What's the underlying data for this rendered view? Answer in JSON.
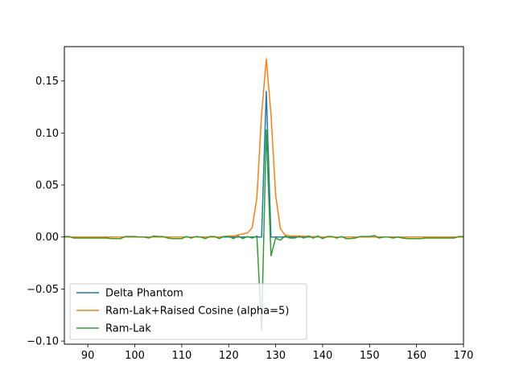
{
  "chart_data": {
    "type": "line",
    "title": "",
    "xlabel": "",
    "ylabel": "",
    "xlim": [
      85,
      170
    ],
    "ylim": [
      -0.103,
      0.183
    ],
    "xticks": [
      90,
      100,
      110,
      120,
      130,
      140,
      150,
      160,
      170
    ],
    "yticks": [
      -0.1,
      -0.05,
      0.0,
      0.05,
      0.1,
      0.15
    ],
    "ytick_labels": [
      "−0.10",
      "−0.05",
      "0.00",
      "0.05",
      "0.10",
      "0.15"
    ],
    "grid": false,
    "legend_position": "lower-left",
    "series": [
      {
        "name": "Delta Phantom",
        "color": "#1f77b4",
        "x": [
          85,
          126,
          127,
          128,
          129,
          130,
          170
        ],
        "y": [
          0,
          0,
          0,
          0.14,
          0,
          0,
          0
        ]
      },
      {
        "name": "Ram-Lak+Raised Cosine (alpha=5)",
        "color": "#ff7f0e",
        "x": [
          85,
          90,
          100,
          110,
          115,
          118,
          120,
          121,
          122,
          123,
          124,
          125,
          126,
          127,
          128,
          129,
          130,
          131,
          132,
          133,
          135,
          140,
          150,
          160,
          170
        ],
        "y": [
          0,
          0,
          0,
          0,
          0,
          0,
          0.001,
          0.001,
          0.002,
          0.003,
          0.004,
          0.009,
          0.038,
          0.118,
          0.171,
          0.118,
          0.04,
          0.008,
          0.002,
          0.001,
          0.001,
          0,
          0,
          0,
          0
        ]
      },
      {
        "name": "Ram-Lak",
        "color": "#2ca02c",
        "x": [
          85,
          86,
          87,
          88,
          89,
          90,
          91,
          92,
          93,
          94,
          95,
          96,
          97,
          98,
          99,
          100,
          101,
          102,
          103,
          104,
          105,
          106,
          107,
          108,
          109,
          110,
          111,
          112,
          113,
          114,
          115,
          116,
          117,
          118,
          119,
          120,
          121,
          122,
          123,
          124,
          125,
          126,
          127,
          128,
          129,
          130,
          131,
          132,
          133,
          134,
          135,
          136,
          137,
          138,
          139,
          140,
          141,
          142,
          143,
          144,
          145,
          146,
          147,
          148,
          149,
          150,
          151,
          152,
          153,
          154,
          155,
          156,
          157,
          158,
          159,
          160,
          161,
          162,
          163,
          164,
          165,
          166,
          167,
          168,
          169,
          170
        ],
        "y": [
          0.0005,
          0.0005,
          -0.001,
          -0.001,
          -0.001,
          -0.001,
          -0.001,
          -0.001,
          -0.001,
          -0.001,
          -0.0015,
          -0.0015,
          -0.0015,
          0.0005,
          0.0005,
          0.0005,
          0.0,
          0.0,
          -0.001,
          0.001,
          0.0005,
          0.0005,
          -0.001,
          -0.0015,
          -0.0015,
          -0.0015,
          0.0005,
          -0.001,
          0.0005,
          0.0,
          -0.0015,
          0.0005,
          0.0005,
          -0.0015,
          0.0005,
          0.0005,
          -0.0015,
          0.001,
          -0.0015,
          0.0005,
          -0.001,
          0.001,
          -0.089,
          0.103,
          -0.018,
          -0.001,
          -0.003,
          0.001,
          -0.001,
          -0.001,
          0.0005,
          -0.001,
          0.001,
          -0.001,
          0.001,
          -0.0015,
          0.0005,
          0.0005,
          -0.001,
          0.0005,
          -0.0015,
          -0.0015,
          -0.001,
          0.0005,
          0.0005,
          0.0005,
          0.0015,
          -0.001,
          0.0,
          0.0,
          -0.001,
          0.0,
          -0.001,
          -0.0015,
          -0.0015,
          -0.0015,
          -0.0015,
          -0.001,
          -0.001,
          -0.001,
          -0.001,
          -0.001,
          -0.001,
          -0.001,
          0.0005,
          0.0005
        ]
      }
    ]
  }
}
